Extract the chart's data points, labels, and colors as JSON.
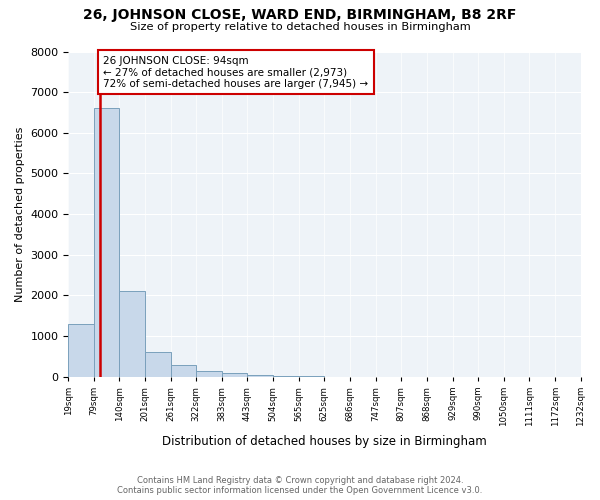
{
  "title": "26, JOHNSON CLOSE, WARD END, BIRMINGHAM, B8 2RF",
  "subtitle": "Size of property relative to detached houses in Birmingham",
  "xlabel": "Distribution of detached houses by size in Birmingham",
  "ylabel": "Number of detached properties",
  "annotation_line1": "26 JOHNSON CLOSE: 94sqm",
  "annotation_line2": "← 27% of detached houses are smaller (2,973)",
  "annotation_line3": "72% of semi-detached houses are larger (7,945) →",
  "bins": [
    19,
    79,
    140,
    201,
    261,
    322,
    383,
    443,
    504,
    565,
    625,
    686,
    747,
    807,
    868,
    929,
    990,
    1050,
    1111,
    1172,
    1232
  ],
  "bin_labels": [
    "19sqm",
    "79sqm",
    "140sqm",
    "201sqm",
    "261sqm",
    "322sqm",
    "383sqm",
    "443sqm",
    "504sqm",
    "565sqm",
    "625sqm",
    "686sqm",
    "747sqm",
    "807sqm",
    "868sqm",
    "929sqm",
    "990sqm",
    "1050sqm",
    "1111sqm",
    "1172sqm",
    "1232sqm"
  ],
  "bar_values": [
    1300,
    6600,
    2100,
    600,
    300,
    150,
    100,
    50,
    20,
    10,
    5,
    3,
    2,
    1,
    1,
    1,
    0,
    0,
    0,
    0
  ],
  "bar_color": "#c8d8ea",
  "bar_edge_color": "#7aa0bc",
  "vline_color": "#cc0000",
  "vline_x": 94,
  "annotation_box_color": "#cc0000",
  "background_color": "#eef3f8",
  "ylim": [
    0,
    8000
  ],
  "footer_line1": "Contains HM Land Registry data © Crown copyright and database right 2024.",
  "footer_line2": "Contains public sector information licensed under the Open Government Licence v3.0."
}
